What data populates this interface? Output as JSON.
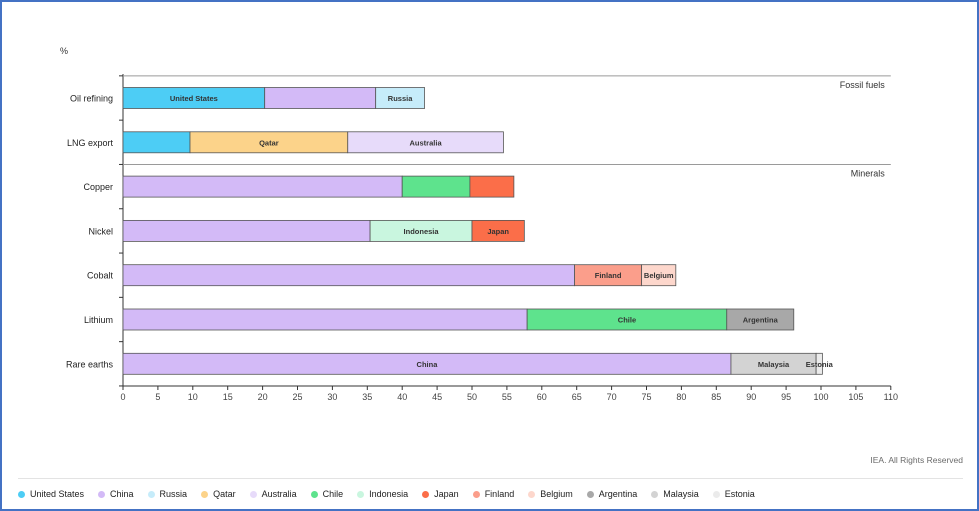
{
  "credit": "IEA. All Rights Reserved",
  "chart_data": {
    "type": "bar",
    "orientation": "horizontal",
    "stacked": true,
    "ylabel": "%",
    "xlim": [
      0,
      110
    ],
    "x_ticks": [
      0,
      5,
      10,
      15,
      20,
      25,
      30,
      35,
      40,
      45,
      50,
      55,
      60,
      65,
      70,
      75,
      80,
      85,
      90,
      95,
      100,
      105,
      110
    ],
    "groups": [
      {
        "label": "Fossil fuels",
        "rows": [
          0,
          1
        ]
      },
      {
        "label": "Minerals",
        "rows": [
          2,
          3,
          4,
          5,
          6
        ]
      }
    ],
    "categories": [
      "Oil refining",
      "LNG export",
      "Copper",
      "Nickel",
      "Cobalt",
      "Lithium",
      "Rare earths"
    ],
    "rows": [
      {
        "category": "Oil refining",
        "segments": [
          {
            "country": "United States",
            "value": 20.3,
            "label": "United States"
          },
          {
            "country": "China",
            "value": 15.9,
            "label": ""
          },
          {
            "country": "Russia",
            "value": 7.0,
            "label": "Russia"
          }
        ]
      },
      {
        "category": "LNG export",
        "segments": [
          {
            "country": "United States",
            "value": 9.6,
            "label": ""
          },
          {
            "country": "Qatar",
            "value": 22.6,
            "label": "Qatar"
          },
          {
            "country": "Australia",
            "value": 22.3,
            "label": "Australia"
          }
        ]
      },
      {
        "category": "Copper",
        "segments": [
          {
            "country": "China",
            "value": 40.0,
            "label": ""
          },
          {
            "country": "Chile",
            "value": 9.7,
            "label": ""
          },
          {
            "country": "Japan",
            "value": 6.3,
            "label": ""
          }
        ]
      },
      {
        "category": "Nickel",
        "segments": [
          {
            "country": "China",
            "value": 35.4,
            "label": ""
          },
          {
            "country": "Indonesia",
            "value": 14.6,
            "label": "Indonesia"
          },
          {
            "country": "Japan",
            "value": 7.5,
            "label": "Japan"
          }
        ]
      },
      {
        "category": "Cobalt",
        "segments": [
          {
            "country": "China",
            "value": 64.7,
            "label": ""
          },
          {
            "country": "Finland",
            "value": 9.6,
            "label": "Finland"
          },
          {
            "country": "Belgium",
            "value": 4.9,
            "label": "Belgium"
          }
        ]
      },
      {
        "category": "Lithium",
        "segments": [
          {
            "country": "China",
            "value": 57.9,
            "label": ""
          },
          {
            "country": "Chile",
            "value": 28.6,
            "label": "Chile"
          },
          {
            "country": "Argentina",
            "value": 9.6,
            "label": "Argentina"
          }
        ]
      },
      {
        "category": "Rare earths",
        "segments": [
          {
            "country": "China",
            "value": 87.1,
            "label": "China"
          },
          {
            "country": "Malaysia",
            "value": 12.2,
            "label": "Malaysia"
          },
          {
            "country": "Estonia",
            "value": 0.9,
            "label": "Estonia"
          }
        ]
      }
    ],
    "legend": [
      {
        "name": "United States",
        "color": "#4dcdf5"
      },
      {
        "name": "China",
        "color": "#d3baf7"
      },
      {
        "name": "Russia",
        "color": "#c6ecfa"
      },
      {
        "name": "Qatar",
        "color": "#fcd38a"
      },
      {
        "name": "Australia",
        "color": "#e7dbfa"
      },
      {
        "name": "Chile",
        "color": "#5ee38d"
      },
      {
        "name": "Indonesia",
        "color": "#c9f6df"
      },
      {
        "name": "Japan",
        "color": "#fb6e49"
      },
      {
        "name": "Finland",
        "color": "#fb9e8b"
      },
      {
        "name": "Belgium",
        "color": "#fdd7cc"
      },
      {
        "name": "Argentina",
        "color": "#a8a8a8"
      },
      {
        "name": "Malaysia",
        "color": "#d3d3d3"
      },
      {
        "name": "Estonia",
        "color": "#ebebeb"
      }
    ],
    "legend_position": "bottom",
    "grid": false
  }
}
